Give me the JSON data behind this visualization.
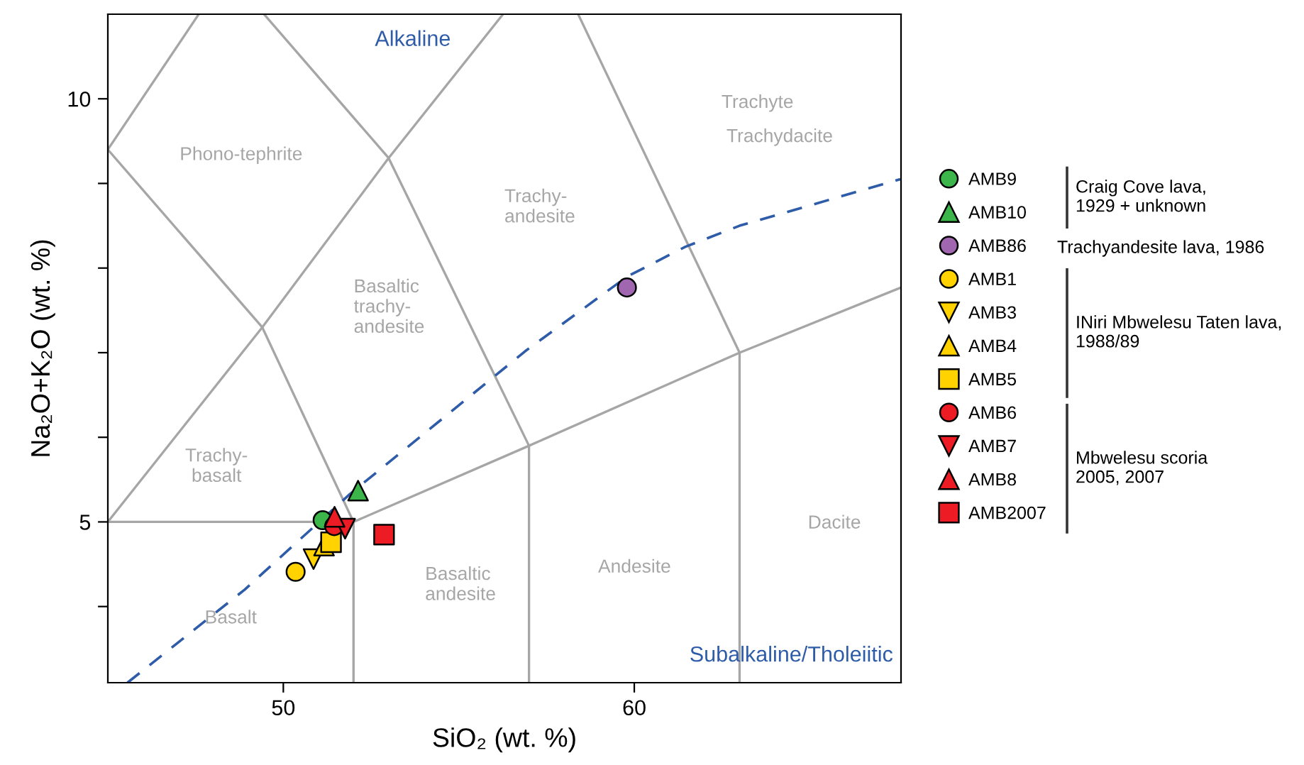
{
  "chart_data": {
    "type": "scatter",
    "xlabel": "SiO₂ (wt. %)",
    "ylabel": "Na₂O+K₂O (wt. %)",
    "xlim": [
      45,
      67.6
    ],
    "ylim": [
      3.1,
      11
    ],
    "xticks": [
      50,
      60
    ],
    "yticks": [
      {
        "value": 4,
        "label": null
      },
      5,
      {
        "value": 6,
        "label": null
      },
      {
        "value": 7,
        "label": null
      },
      {
        "value": 8,
        "label": null
      },
      {
        "value": 9,
        "label": null
      },
      10
    ],
    "grid": false,
    "legend": "right",
    "series": [
      {
        "type": "line",
        "color": "#a6a6a6",
        "line_style": "solid",
        "x": [
          45,
          49.4,
          52,
          52
        ],
        "values": [
          9.4,
          7.3,
          5,
          3.1
        ]
      },
      {
        "type": "line",
        "color": "#a6a6a6",
        "line_style": "solid",
        "x": [
          45,
          49.4,
          53,
          56.26
        ],
        "values": [
          5,
          7.3,
          9.3,
          11
        ]
      },
      {
        "type": "line",
        "color": "#a6a6a6",
        "line_style": "solid",
        "x": [
          45,
          52,
          57,
          63,
          67.6
        ],
        "values": [
          5,
          5,
          5.9,
          7,
          7.77
        ]
      },
      {
        "type": "line",
        "color": "#a6a6a6",
        "line_style": "solid",
        "x": [
          45,
          47.59
        ],
        "values": [
          9.4,
          11
        ]
      },
      {
        "type": "line",
        "color": "#a6a6a6",
        "line_style": "solid",
        "x": [
          49.45,
          53,
          57,
          57
        ],
        "values": [
          11,
          9.3,
          5.9,
          3.1
        ]
      },
      {
        "type": "line",
        "color": "#a6a6a6",
        "line_style": "solid",
        "x": [
          58.4,
          63,
          63
        ],
        "values": [
          11,
          7,
          3.1
        ]
      },
      {
        "type": "line",
        "color": "#2e5ca8",
        "line_style": "dashed",
        "x": [
          45.56,
          48.9,
          51.9,
          56.9,
          59.8,
          61.45,
          63.0,
          67.58
        ],
        "values": [
          3.1,
          4.2,
          5.33,
          7.02,
          7.9,
          8.25,
          8.5,
          9.05
        ]
      },
      {
        "name": "AMB9",
        "color": "#3cb54a",
        "marker": "circle",
        "x": [
          51.12
        ],
        "values": [
          5.02
        ]
      },
      {
        "name": "AMB10",
        "color": "#3cb54a",
        "marker": "triangle",
        "x": [
          52.13
        ],
        "values": [
          5.37
        ]
      },
      {
        "name": "AMB86",
        "color": "#a066b0",
        "marker": "circle",
        "x": [
          59.79
        ],
        "values": [
          7.77
        ]
      },
      {
        "name": "AMB1",
        "color": "#ffd200",
        "marker": "circle",
        "x": [
          50.35
        ],
        "values": [
          4.41
        ]
      },
      {
        "name": "AMB3",
        "color": "#ffd200",
        "marker": "triangle_down",
        "x": [
          50.86
        ],
        "values": [
          4.56
        ]
      },
      {
        "name": "AMB4",
        "color": "#ffd200",
        "marker": "triangle",
        "x": [
          51.16
        ],
        "values": [
          4.72
        ]
      },
      {
        "name": "AMB5",
        "color": "#ffd200",
        "marker": "square",
        "x": [
          51.36
        ],
        "values": [
          4.76
        ]
      },
      {
        "name": "AMB6",
        "color": "#ed1c24",
        "marker": "circle",
        "x": [
          51.45
        ],
        "values": [
          4.95
        ]
      },
      {
        "name": "AMB7",
        "color": "#ed1c24",
        "marker": "triangle_down",
        "x": [
          51.76
        ],
        "values": [
          4.92
        ]
      },
      {
        "name": "AMB8",
        "color": "#ed1c24",
        "marker": "triangle",
        "x": [
          51.46
        ],
        "values": [
          5.06
        ]
      },
      {
        "name": "AMB2007",
        "color": "#ed1c24",
        "marker": "square",
        "x": [
          52.87
        ],
        "values": [
          4.85
        ]
      }
    ],
    "annotations": [
      "Alkaline",
      "Subalkaline/Tholeiitic",
      "Phono-tephrite",
      "Basaltic\ntrachy-\nandesite",
      "Trachy-\nandesite",
      "Trachyte",
      "Trachydacite",
      "Trachy-\nbasalt",
      "Basalt",
      "Basaltic\nandesite",
      "Andesite",
      "Dacite",
      "Craig Cove lava,\n1929 + unknown",
      "Trachyandesite lava, 1986",
      "INiri Mbwelesu Taten lava,\n1988/89",
      "Mbwelesu scoria\n2005, 2007"
    ]
  }
}
